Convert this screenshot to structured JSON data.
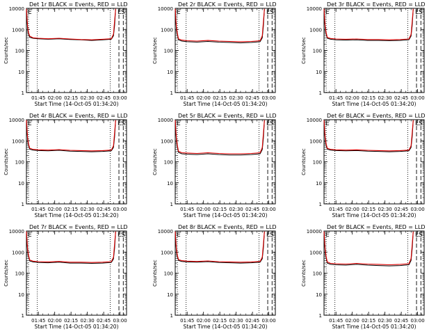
{
  "figure": {
    "xlabel": "Start Time (14-Oct-05 01:34:20)",
    "ylabel": "Counts/sec",
    "xticks": [
      {
        "t": 11,
        "label": "01:45"
      },
      {
        "t": 26,
        "label": "02:00"
      },
      {
        "t": 41,
        "label": "02:15"
      },
      {
        "t": 56,
        "label": "02:30"
      },
      {
        "t": 71,
        "label": "02:45"
      },
      {
        "t": 86,
        "label": "03:00"
      }
    ],
    "yticks": [
      {
        "v": 1,
        "label": "1"
      },
      {
        "v": 10,
        "label": "10"
      },
      {
        "v": 100,
        "label": "100"
      },
      {
        "v": 1000,
        "label": "1000"
      },
      {
        "v": 10000,
        "label": "10000"
      }
    ],
    "corner_markers": {
      "left": "E",
      "right": "LS"
    },
    "colors": {
      "events": "#000000",
      "lld": "#e00000"
    }
  },
  "chart_data": [
    {
      "type": "line",
      "title": "Det 1r BLACK = Events, RED = LLD",
      "xlim": [
        0,
        92
      ],
      "ylim": [
        1,
        10000
      ],
      "yscale": "log",
      "x": [
        0,
        1,
        2,
        3,
        6,
        11,
        20,
        30,
        40,
        50,
        60,
        70,
        78,
        80,
        81,
        82
      ],
      "series": [
        {
          "name": "BLACK = Events",
          "values": [
            9000,
            1200,
            600,
            420,
            380,
            360,
            340,
            360,
            330,
            320,
            300,
            320,
            340,
            500,
            1500,
            9000
          ]
        },
        {
          "name": "RED = LLD",
          "values": [
            9500,
            1500,
            700,
            480,
            400,
            380,
            360,
            380,
            350,
            330,
            320,
            340,
            360,
            600,
            2500,
            9500
          ]
        }
      ],
      "vlines_dotted": [
        2,
        10,
        77
      ],
      "vlines_dashed": [
        85,
        89
      ]
    },
    {
      "type": "line",
      "title": "Det 2r BLACK = Events, RED = LLD",
      "xlim": [
        0,
        92
      ],
      "ylim": [
        1,
        10000
      ],
      "yscale": "log",
      "x": [
        0,
        1,
        2,
        3,
        6,
        11,
        20,
        30,
        40,
        50,
        60,
        70,
        78,
        80,
        81,
        82
      ],
      "series": [
        {
          "name": "BLACK = Events",
          "values": [
            9000,
            1100,
            550,
            320,
            280,
            260,
            250,
            270,
            250,
            240,
            230,
            240,
            260,
            400,
            1400,
            9000
          ]
        },
        {
          "name": "RED = LLD",
          "values": [
            9500,
            1400,
            650,
            360,
            310,
            290,
            280,
            300,
            280,
            270,
            260,
            270,
            290,
            500,
            2300,
            9500
          ]
        }
      ],
      "vlines_dotted": [
        2,
        10,
        77
      ],
      "vlines_dashed": [
        85,
        89
      ]
    },
    {
      "type": "line",
      "title": "Det 3r BLACK = Events, RED = LLD",
      "xlim": [
        0,
        92
      ],
      "ylim": [
        1,
        10000
      ],
      "yscale": "log",
      "x": [
        0,
        1,
        2,
        3,
        6,
        11,
        20,
        30,
        40,
        50,
        60,
        70,
        78,
        80,
        81,
        82
      ],
      "series": [
        {
          "name": "BLACK = Events",
          "values": [
            9000,
            1200,
            600,
            380,
            340,
            320,
            310,
            320,
            300,
            300,
            290,
            300,
            320,
            480,
            1500,
            9000
          ]
        },
        {
          "name": "RED = LLD",
          "values": [
            9500,
            1500,
            700,
            420,
            370,
            350,
            340,
            350,
            330,
            330,
            320,
            330,
            350,
            580,
            2400,
            9500
          ]
        }
      ],
      "vlines_dotted": [
        2,
        10,
        77
      ],
      "vlines_dashed": [
        85,
        89
      ]
    },
    {
      "type": "line",
      "title": "Det 4r BLACK = Events, RED = LLD",
      "xlim": [
        0,
        92
      ],
      "ylim": [
        1,
        10000
      ],
      "yscale": "log",
      "x": [
        0,
        1,
        2,
        3,
        6,
        11,
        20,
        30,
        40,
        50,
        60,
        70,
        78,
        80,
        81,
        82
      ],
      "series": [
        {
          "name": "BLACK = Events",
          "values": [
            9000,
            1200,
            600,
            400,
            360,
            340,
            330,
            350,
            320,
            310,
            300,
            310,
            330,
            480,
            1500,
            9000
          ]
        },
        {
          "name": "RED = LLD",
          "values": [
            9500,
            1500,
            700,
            440,
            390,
            370,
            360,
            380,
            350,
            340,
            330,
            340,
            360,
            580,
            2400,
            9500
          ]
        }
      ],
      "vlines_dotted": [
        2,
        10,
        77
      ],
      "vlines_dashed": [
        85,
        89
      ]
    },
    {
      "type": "line",
      "title": "Det 5r BLACK = Events, RED = LLD",
      "xlim": [
        0,
        92
      ],
      "ylim": [
        1,
        10000
      ],
      "yscale": "log",
      "x": [
        0,
        1,
        2,
        3,
        6,
        11,
        20,
        30,
        40,
        50,
        60,
        70,
        78,
        80,
        81,
        82
      ],
      "series": [
        {
          "name": "BLACK = Events",
          "values": [
            9000,
            1100,
            500,
            280,
            240,
            230,
            220,
            240,
            220,
            210,
            210,
            220,
            240,
            380,
            1300,
            9000
          ]
        },
        {
          "name": "RED = LLD",
          "values": [
            9500,
            1400,
            600,
            320,
            270,
            260,
            250,
            270,
            250,
            240,
            240,
            250,
            270,
            480,
            2200,
            9500
          ]
        }
      ],
      "vlines_dotted": [
        2,
        10,
        77
      ],
      "vlines_dashed": [
        85,
        89
      ]
    },
    {
      "type": "line",
      "title": "Det 6r BLACK = Events, RED = LLD",
      "xlim": [
        0,
        92
      ],
      "ylim": [
        1,
        10000
      ],
      "yscale": "log",
      "x": [
        0,
        1,
        2,
        3,
        6,
        11,
        20,
        30,
        40,
        50,
        60,
        70,
        78,
        80,
        81,
        82
      ],
      "series": [
        {
          "name": "BLACK = Events",
          "values": [
            9000,
            1200,
            600,
            400,
            360,
            340,
            330,
            340,
            320,
            310,
            300,
            310,
            330,
            480,
            1500,
            9000
          ]
        },
        {
          "name": "RED = LLD",
          "values": [
            9500,
            1500,
            700,
            440,
            390,
            370,
            360,
            370,
            350,
            340,
            330,
            340,
            360,
            580,
            2400,
            9500
          ]
        }
      ],
      "vlines_dotted": [
        2,
        10,
        77
      ],
      "vlines_dashed": [
        85,
        89
      ]
    },
    {
      "type": "line",
      "title": "Det 7r BLACK = Events, RED = LLD",
      "xlim": [
        0,
        92
      ],
      "ylim": [
        1,
        10000
      ],
      "yscale": "log",
      "x": [
        0,
        1,
        2,
        3,
        6,
        11,
        20,
        30,
        40,
        50,
        60,
        70,
        78,
        80,
        81,
        82
      ],
      "series": [
        {
          "name": "BLACK = Events",
          "values": [
            9000,
            1200,
            600,
            380,
            340,
            320,
            310,
            330,
            300,
            300,
            290,
            300,
            320,
            470,
            1500,
            9000
          ]
        },
        {
          "name": "RED = LLD",
          "values": [
            9500,
            1500,
            700,
            420,
            370,
            350,
            340,
            360,
            330,
            330,
            320,
            330,
            350,
            570,
            2400,
            9500
          ]
        }
      ],
      "vlines_dotted": [
        2,
        10,
        77
      ],
      "vlines_dashed": [
        85,
        89
      ]
    },
    {
      "type": "line",
      "title": "Det 8r BLACK = Events, RED = LLD",
      "xlim": [
        0,
        92
      ],
      "ylim": [
        1,
        10000
      ],
      "yscale": "log",
      "x": [
        0,
        1,
        2,
        3,
        6,
        11,
        20,
        30,
        40,
        50,
        60,
        70,
        78,
        80,
        81,
        82
      ],
      "series": [
        {
          "name": "BLACK = Events",
          "values": [
            9000,
            1200,
            600,
            400,
            360,
            340,
            330,
            350,
            320,
            310,
            300,
            310,
            330,
            480,
            1500,
            9000
          ]
        },
        {
          "name": "RED = LLD",
          "values": [
            9500,
            1500,
            700,
            440,
            390,
            370,
            360,
            380,
            350,
            340,
            330,
            340,
            360,
            580,
            2400,
            9500
          ]
        }
      ],
      "vlines_dotted": [
        2,
        10,
        77
      ],
      "vlines_dashed": [
        85,
        89
      ]
    },
    {
      "type": "line",
      "title": "Det 9r BLACK = Events, RED = LLD",
      "xlim": [
        0,
        92
      ],
      "ylim": [
        1,
        10000
      ],
      "yscale": "log",
      "x": [
        0,
        1,
        2,
        3,
        6,
        11,
        20,
        30,
        40,
        50,
        60,
        70,
        78,
        80,
        81,
        82
      ],
      "series": [
        {
          "name": "BLACK = Events",
          "values": [
            9000,
            1100,
            500,
            300,
            260,
            250,
            240,
            260,
            240,
            230,
            220,
            230,
            250,
            400,
            1400,
            9000
          ]
        },
        {
          "name": "RED = LLD",
          "values": [
            9500,
            1400,
            600,
            340,
            290,
            280,
            270,
            290,
            270,
            260,
            250,
            260,
            280,
            500,
            2300,
            9500
          ]
        }
      ],
      "vlines_dotted": [
        2,
        10,
        77
      ],
      "vlines_dashed": [
        85,
        89
      ]
    }
  ]
}
